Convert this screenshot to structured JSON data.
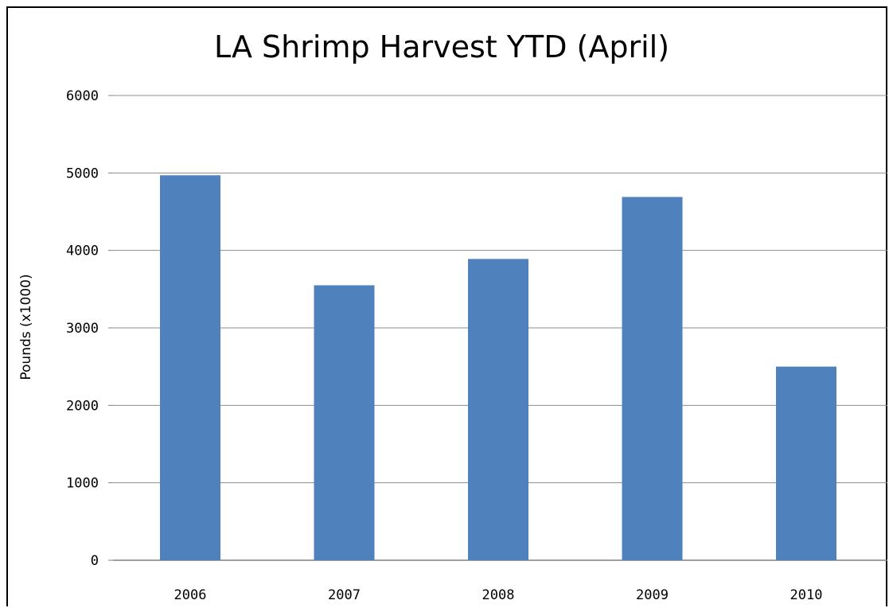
{
  "chart_data": {
    "type": "bar",
    "title": "LA Shrimp Harvest YTD (April)",
    "xlabel": "",
    "ylabel": "Pounds (x1000)",
    "categories": [
      "2006",
      "2007",
      "2008",
      "2009",
      "2010"
    ],
    "values": [
      4970,
      3550,
      3890,
      4690,
      2500
    ],
    "ylim": [
      0,
      6000
    ],
    "yticks": [
      "0",
      "1000",
      "2000",
      "3000",
      "4000",
      "5000",
      "6000"
    ],
    "ytick_values": [
      0,
      1000,
      2000,
      3000,
      4000,
      5000,
      6000
    ],
    "grid": true,
    "legend": "none",
    "colors": {
      "bar": "#4f81bd",
      "grid": "#8c8c8c",
      "axis": "#808080"
    }
  }
}
